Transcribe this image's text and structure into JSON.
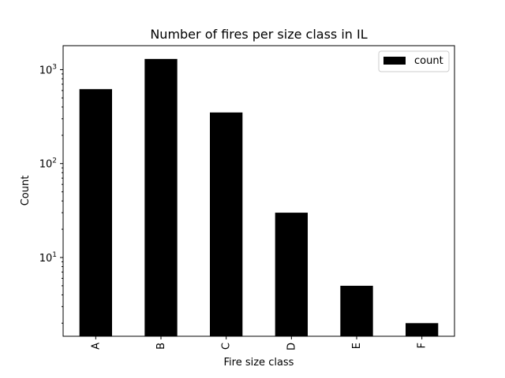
{
  "chart_data": {
    "type": "bar",
    "title": "Number of fires per size class in IL",
    "xlabel": "Fire size class",
    "ylabel": "Count",
    "yscale": "log",
    "ylim": [
      1.45,
      1800
    ],
    "categories": [
      "A",
      "B",
      "C",
      "D",
      "E",
      "F"
    ],
    "series": [
      {
        "name": "count",
        "values": [
          620,
          1300,
          350,
          30,
          5,
          2
        ],
        "color": "#000000"
      }
    ],
    "y_ticks": [
      {
        "value": 10,
        "label": "10",
        "exp": "1"
      },
      {
        "value": 100,
        "label": "10",
        "exp": "2"
      },
      {
        "value": 1000,
        "label": "10",
        "exp": "3"
      }
    ],
    "legend": {
      "position": "top-right"
    },
    "grid": false
  }
}
